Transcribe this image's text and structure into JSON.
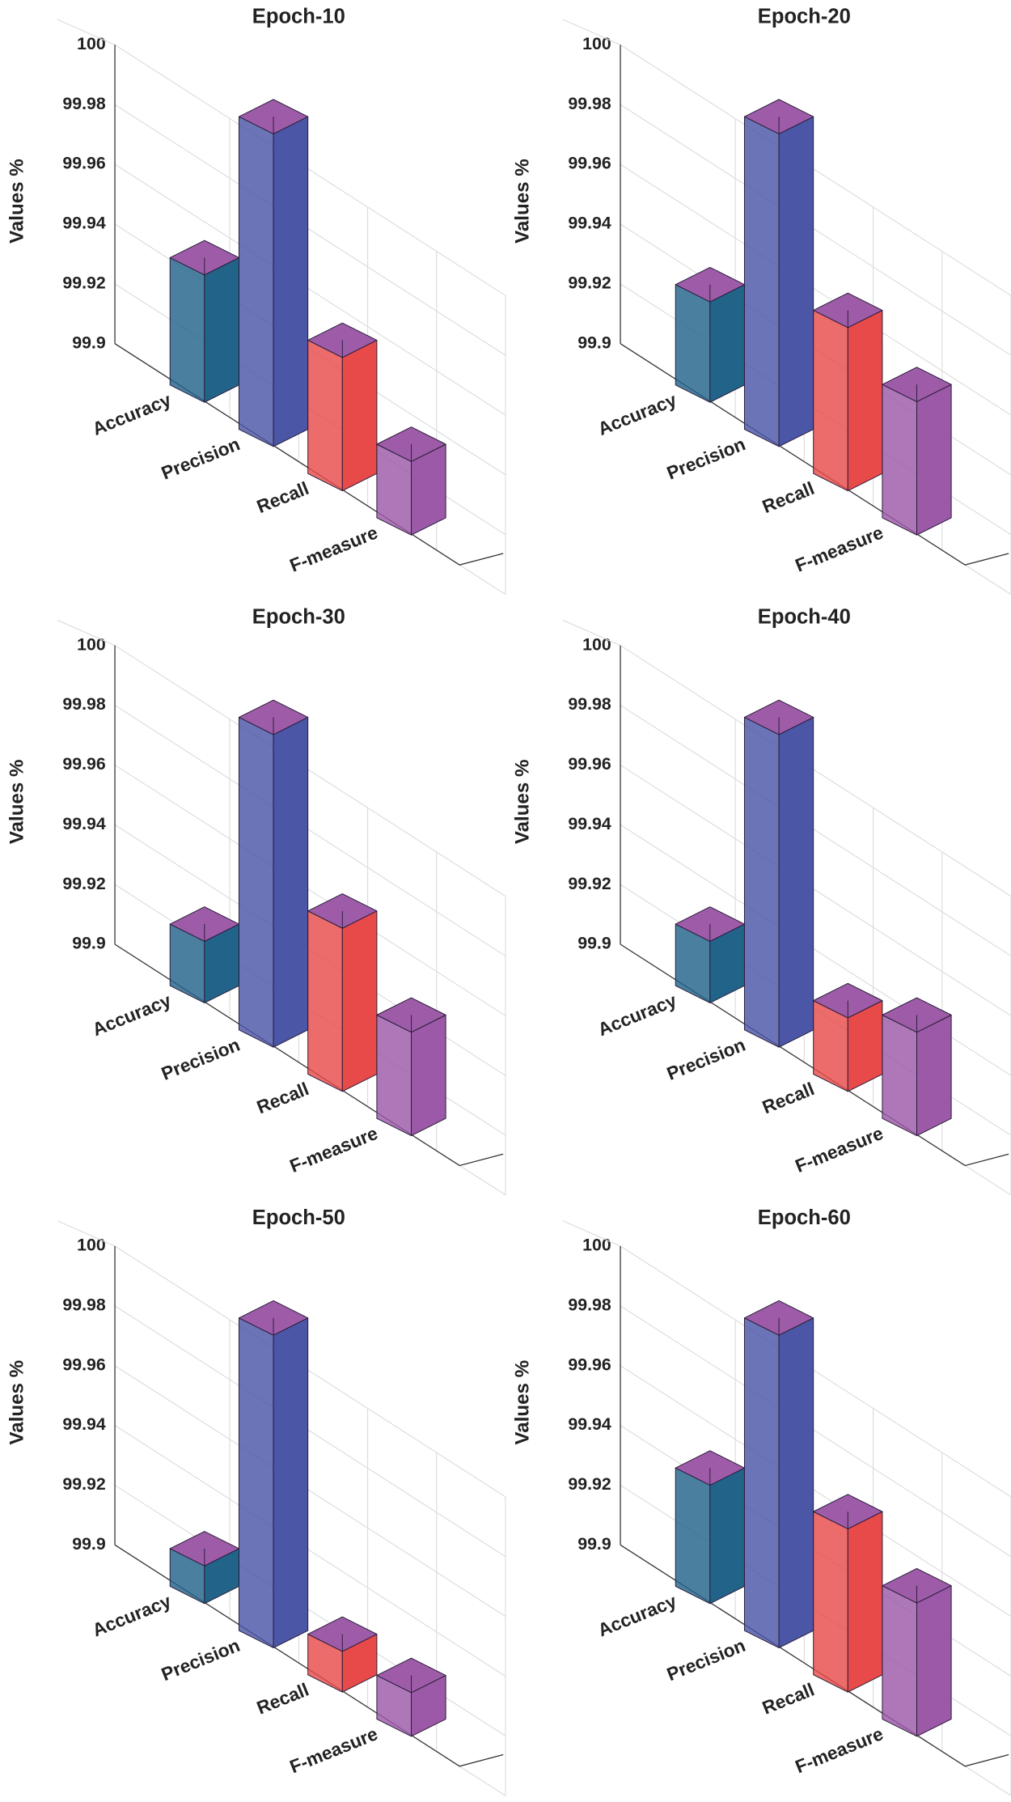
{
  "chart_data": [
    {
      "type": "bar3d",
      "title": "Epoch-10",
      "ylabel": "Values %",
      "categories": [
        "Accuracy",
        "Precision",
        "Recall",
        "F-measure"
      ],
      "values": [
        99.923,
        99.985,
        99.925,
        99.905
      ],
      "colors": [
        "#22638a",
        "#4b56a6",
        "#e84a4a",
        "#9b59a8"
      ],
      "top_color": "#9e5ca8",
      "ylim": [
        99.88,
        100
      ],
      "yticks": [
        99.9,
        99.92,
        99.94,
        99.96,
        99.98,
        100
      ],
      "grid": true
    },
    {
      "type": "bar3d",
      "title": "Epoch-20",
      "ylabel": "Values %",
      "categories": [
        "Accuracy",
        "Precision",
        "Recall",
        "F-measure"
      ],
      "values": [
        99.914,
        99.985,
        99.935,
        99.925
      ],
      "colors": [
        "#22638a",
        "#4b56a6",
        "#e84a4a",
        "#9b59a8"
      ],
      "top_color": "#9e5ca8",
      "ylim": [
        99.88,
        100
      ],
      "yticks": [
        99.9,
        99.92,
        99.94,
        99.96,
        99.98,
        100
      ],
      "grid": true
    },
    {
      "type": "bar3d",
      "title": "Epoch-30",
      "ylabel": "Values %",
      "categories": [
        "Accuracy",
        "Precision",
        "Recall",
        "F-measure"
      ],
      "values": [
        99.901,
        99.985,
        99.935,
        99.915
      ],
      "colors": [
        "#22638a",
        "#4b56a6",
        "#e84a4a",
        "#9b59a8"
      ],
      "top_color": "#9e5ca8",
      "ylim": [
        99.88,
        100
      ],
      "yticks": [
        99.9,
        99.92,
        99.94,
        99.96,
        99.98,
        100
      ],
      "grid": true
    },
    {
      "type": "bar3d",
      "title": "Epoch-40",
      "ylabel": "Values %",
      "categories": [
        "Accuracy",
        "Precision",
        "Recall",
        "F-measure"
      ],
      "values": [
        99.901,
        99.985,
        99.905,
        99.915
      ],
      "colors": [
        "#22638a",
        "#4b56a6",
        "#e84a4a",
        "#9b59a8"
      ],
      "top_color": "#9e5ca8",
      "ylim": [
        99.88,
        100
      ],
      "yticks": [
        99.9,
        99.92,
        99.94,
        99.96,
        99.98,
        100
      ],
      "grid": true
    },
    {
      "type": "bar3d",
      "title": "Epoch-50",
      "ylabel": "Values %",
      "categories": [
        "Accuracy",
        "Precision",
        "Recall",
        "F-measure"
      ],
      "values": [
        99.893,
        99.985,
        99.894,
        99.895
      ],
      "colors": [
        "#22638a",
        "#4b56a6",
        "#e84a4a",
        "#9b59a8"
      ],
      "top_color": "#9e5ca8",
      "ylim": [
        99.88,
        100
      ],
      "yticks": [
        99.9,
        99.92,
        99.94,
        99.96,
        99.98,
        100
      ],
      "grid": true
    },
    {
      "type": "bar3d",
      "title": "Epoch-60",
      "ylabel": "Values %",
      "categories": [
        "Accuracy",
        "Precision",
        "Recall",
        "F-measure"
      ],
      "values": [
        99.92,
        99.985,
        99.935,
        99.925
      ],
      "colors": [
        "#22638a",
        "#4b56a6",
        "#e84a4a",
        "#9b59a8"
      ],
      "top_color": "#9e5ca8",
      "ylim": [
        99.88,
        100
      ],
      "yticks": [
        99.9,
        99.92,
        99.94,
        99.96,
        99.98,
        100
      ],
      "grid": true
    }
  ]
}
